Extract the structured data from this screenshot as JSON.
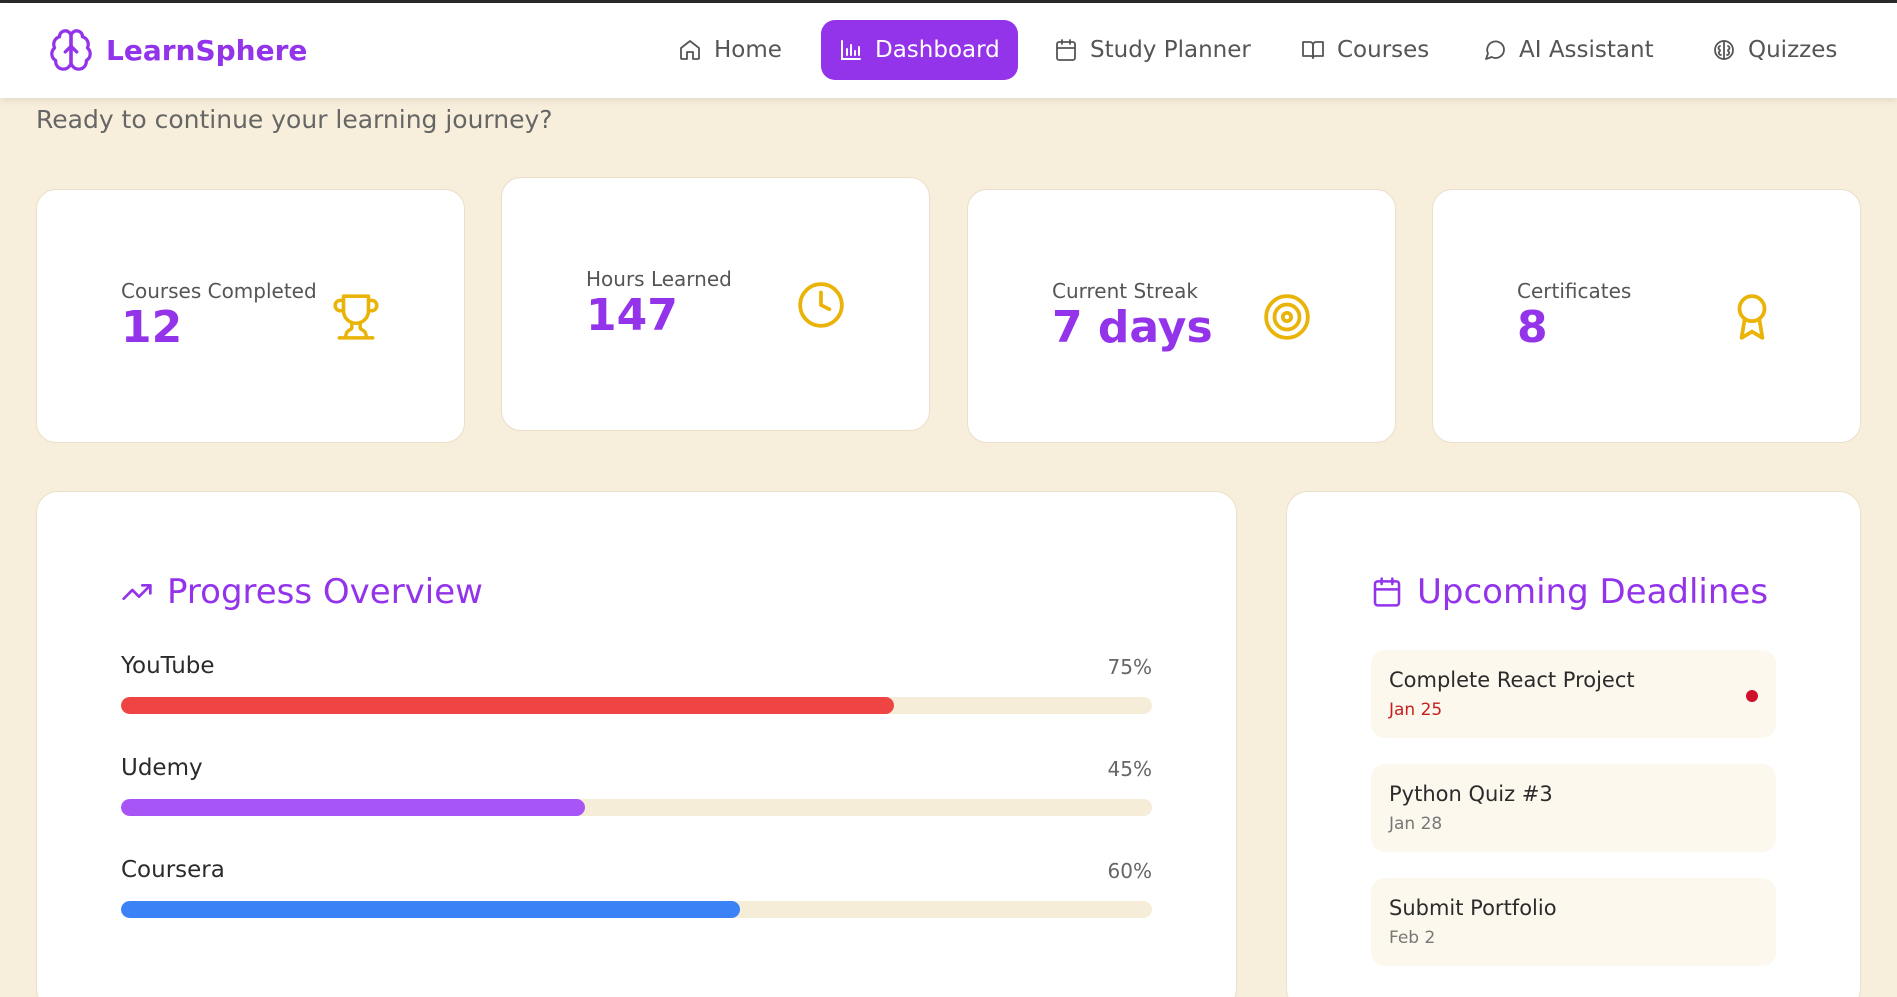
{
  "brand": {
    "name": "LearnSphere",
    "accent": "#9333ea"
  },
  "nav": [
    {
      "label": "Home",
      "icon": "home-icon",
      "active": false
    },
    {
      "label": "Dashboard",
      "icon": "bar-chart-icon",
      "active": true
    },
    {
      "label": "Study Planner",
      "icon": "calendar-icon",
      "active": false
    },
    {
      "label": "Courses",
      "icon": "book-open-icon",
      "active": false
    },
    {
      "label": "AI Assistant",
      "icon": "chat-bubble-icon",
      "active": false
    },
    {
      "label": "Quizzes",
      "icon": "brain-icon",
      "active": false
    }
  ],
  "subtitle": "Ready to continue your learning journey?",
  "stats": [
    {
      "label": "Courses Completed",
      "value": "12",
      "icon": "trophy-icon"
    },
    {
      "label": "Hours Learned",
      "value": "147",
      "icon": "clock-icon"
    },
    {
      "label": "Current Streak",
      "value": "7 days",
      "icon": "target-icon"
    },
    {
      "label": "Certificates",
      "value": "8",
      "icon": "award-icon"
    }
  ],
  "progress": {
    "title": "Progress Overview",
    "icon": "trending-up-icon",
    "items": [
      {
        "label": "YouTube",
        "percent_text": "75%",
        "value": 0.75,
        "color": "#ef4444"
      },
      {
        "label": "Udemy",
        "percent_text": "45%",
        "value": 0.45,
        "color": "#a855f7"
      },
      {
        "label": "Coursera",
        "percent_text": "60%",
        "value": 0.6,
        "color": "#3b82f6"
      }
    ]
  },
  "deadlines": {
    "title": "Upcoming Deadlines",
    "icon": "calendar-icon",
    "items": [
      {
        "title": "Complete React Project",
        "date": "Jan 25",
        "urgent": true
      },
      {
        "title": "Python Quiz #3",
        "date": "Jan 28",
        "urgent": false
      },
      {
        "title": "Submit Portfolio",
        "date": "Feb 2",
        "urgent": false
      }
    ]
  },
  "colors": {
    "background": "#f7efdb",
    "accent": "#9333ea",
    "stat_icon": "#eab308",
    "urgent": "#d0102a"
  }
}
